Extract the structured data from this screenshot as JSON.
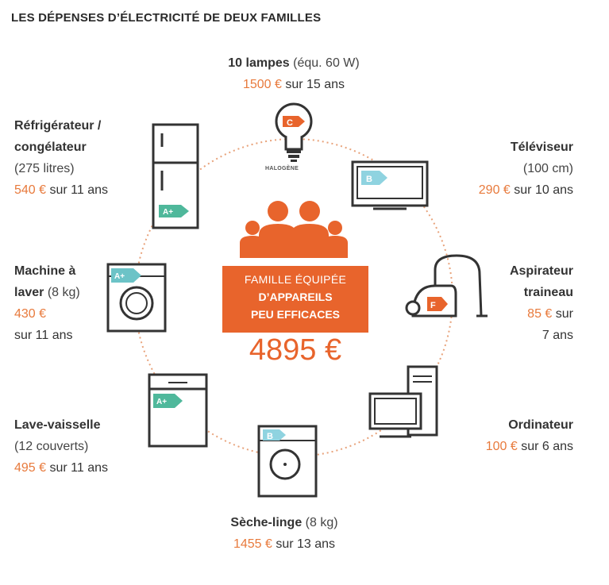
{
  "title": "LES DÉPENSES D’ÉLECTRICITÉ DE DEUX FAMILLES",
  "center": {
    "line1": "FAMILLE ÉQUIPÉE",
    "line2": "D’APPAREILS",
    "line3": "PEU EFFICACES",
    "total": "4895 €"
  },
  "colors": {
    "accent": "#e8642c",
    "label_green": "#4fb89b",
    "label_teal": "#6cc3c7",
    "label_blue": "#8fd3e0"
  },
  "appliances": [
    {
      "key": "lampes",
      "name": "10 lampes",
      "detail": "(équ. 60 W)",
      "cost": "1500 €",
      "period": "sur 15 ans",
      "energy_class": "C",
      "icon": "bulb-icon",
      "extra": "HALOGÈNE"
    },
    {
      "key": "tv",
      "name": "Téléviseur",
      "detail": "(100 cm)",
      "cost": "290 €",
      "period": "sur 10 ans",
      "energy_class": "B",
      "icon": "tv-icon"
    },
    {
      "key": "aspirateur",
      "name1": "Aspirateur",
      "name2": "traineau",
      "cost": "85 €",
      "period1": "sur",
      "period2": "7 ans",
      "energy_class": "F",
      "icon": "vacuum-icon"
    },
    {
      "key": "ordinateur",
      "name": "Ordinateur",
      "cost": "100 €",
      "period": "sur 6 ans",
      "icon": "computer-icon"
    },
    {
      "key": "seche",
      "name": "Sèche-linge",
      "detail": "(8 kg)",
      "cost": "1455 €",
      "period": "sur 13 ans",
      "energy_class": "B",
      "icon": "dryer-icon"
    },
    {
      "key": "vaisselle",
      "name": "Lave-vaisselle",
      "detail": "(12 couverts)",
      "cost": "495 €",
      "period": "sur 11 ans",
      "energy_class": "A+",
      "icon": "dishwasher-icon"
    },
    {
      "key": "machine",
      "name1": "Machine à",
      "name2": "laver",
      "detail": "(8 kg)",
      "cost": "430 €",
      "period": "sur 11 ans",
      "energy_class": "A+",
      "icon": "washing-machine-icon"
    },
    {
      "key": "frigo",
      "name1": "Réfrigérateur /",
      "name2": "congélateur",
      "detail": "(275 litres)",
      "cost": "540 €",
      "period": "sur 11 ans",
      "energy_class": "A+",
      "icon": "fridge-icon"
    }
  ]
}
